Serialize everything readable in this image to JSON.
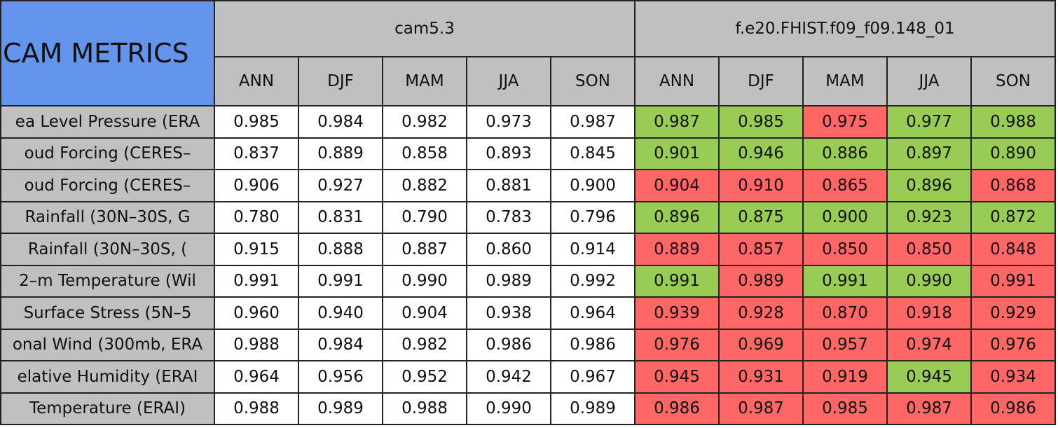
{
  "header": {
    "title": "CAM METRICS",
    "models": [
      {
        "name": "cam5.3",
        "seasons": [
          "ANN",
          "DJF",
          "MAM",
          "JJA",
          "SON"
        ]
      },
      {
        "name": "f.e20.FHIST.f09_f09.148_01",
        "seasons": [
          "ANN",
          "DJF",
          "MAM",
          "JJA",
          "SON"
        ]
      }
    ]
  },
  "rows": [
    {
      "label": "ea Level Pressure (ERA",
      "values": [
        [
          "0.985",
          "0.984",
          "0.982",
          "0.973",
          "0.987"
        ],
        [
          "0.987",
          "0.985",
          "0.975",
          "0.977",
          "0.988"
        ]
      ],
      "fills": [
        "#99cc55",
        "#99cc55",
        "#ff6666",
        "#99cc55",
        "#99cc55"
      ]
    },
    {
      "label": "oud Forcing (CERES–",
      "values": [
        [
          "0.837",
          "0.889",
          "0.858",
          "0.893",
          "0.845"
        ],
        [
          "0.901",
          "0.946",
          "0.886",
          "0.897",
          "0.890"
        ]
      ],
      "fills": [
        "#99cc55",
        "#99cc55",
        "#99cc55",
        "#99cc55",
        "#99cc55"
      ]
    },
    {
      "label": "oud Forcing (CERES–",
      "values": [
        [
          "0.906",
          "0.927",
          "0.882",
          "0.881",
          "0.900"
        ],
        [
          "0.904",
          "0.910",
          "0.865",
          "0.896",
          "0.868"
        ]
      ],
      "fills": [
        "#ff6666",
        "#ff6666",
        "#ff6666",
        "#99cc55",
        "#ff6666"
      ]
    },
    {
      "label": "Rainfall (30N–30S, G",
      "values": [
        [
          "0.780",
          "0.831",
          "0.790",
          "0.783",
          "0.796"
        ],
        [
          "0.896",
          "0.875",
          "0.900",
          "0.923",
          "0.872"
        ]
      ],
      "fills": [
        "#99cc55",
        "#99cc55",
        "#99cc55",
        "#99cc55",
        "#99cc55"
      ]
    },
    {
      "label": "Rainfall (30N–30S, (",
      "values": [
        [
          "0.915",
          "0.888",
          "0.887",
          "0.860",
          "0.914"
        ],
        [
          "0.889",
          "0.857",
          "0.850",
          "0.850",
          "0.848"
        ]
      ],
      "fills": [
        "#ff6666",
        "#ff6666",
        "#ff6666",
        "#ff6666",
        "#ff6666"
      ]
    },
    {
      "label": "2–m Temperature (Wil",
      "values": [
        [
          "0.991",
          "0.991",
          "0.990",
          "0.989",
          "0.992"
        ],
        [
          "0.991",
          "0.989",
          "0.991",
          "0.990",
          "0.991"
        ]
      ],
      "fills": [
        "#99cc55",
        "#ff6666",
        "#99cc55",
        "#99cc55",
        "#ff6666"
      ]
    },
    {
      "label": "Surface Stress (5N–5",
      "values": [
        [
          "0.960",
          "0.940",
          "0.904",
          "0.938",
          "0.964"
        ],
        [
          "0.939",
          "0.928",
          "0.870",
          "0.918",
          "0.929"
        ]
      ],
      "fills": [
        "#ff6666",
        "#ff6666",
        "#ff6666",
        "#ff6666",
        "#ff6666"
      ]
    },
    {
      "label": "onal Wind (300mb, ERA",
      "values": [
        [
          "0.988",
          "0.984",
          "0.982",
          "0.986",
          "0.986"
        ],
        [
          "0.976",
          "0.969",
          "0.957",
          "0.974",
          "0.976"
        ]
      ],
      "fills": [
        "#ff6666",
        "#ff6666",
        "#ff6666",
        "#ff6666",
        "#ff6666"
      ]
    },
    {
      "label": "elative Humidity (ERAI",
      "values": [
        [
          "0.964",
          "0.956",
          "0.952",
          "0.942",
          "0.967"
        ],
        [
          "0.945",
          "0.931",
          "0.919",
          "0.945",
          "0.934"
        ]
      ],
      "fills": [
        "#ff6666",
        "#ff6666",
        "#ff6666",
        "#99cc55",
        "#ff6666"
      ]
    },
    {
      "label": "Temperature (ERAI)",
      "values": [
        [
          "0.988",
          "0.989",
          "0.988",
          "0.990",
          "0.989"
        ],
        [
          "0.986",
          "0.987",
          "0.985",
          "0.987",
          "0.986"
        ]
      ],
      "fills": [
        "#ff6666",
        "#ff6666",
        "#ff6666",
        "#ff6666",
        "#ff6666"
      ]
    }
  ]
}
